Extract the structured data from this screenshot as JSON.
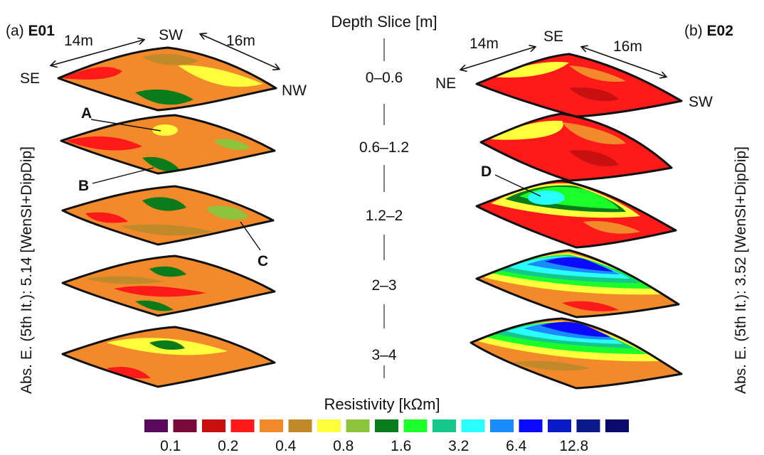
{
  "panel_a": {
    "label_prefix": "(a)",
    "label_code": "E01",
    "side_label": "Abs. E. (5th It.): 5.14 [WenSI+DipDip]",
    "compass": {
      "top": "SW",
      "left": "SE",
      "right": "NW"
    },
    "dims": {
      "left": "14m",
      "right": "16m"
    },
    "callouts": [
      "A",
      "B",
      "C"
    ]
  },
  "panel_b": {
    "label_prefix": "(b)",
    "label_code": "E02",
    "side_label": "Abs. E. (5th It.): 3.52 [WenSI+DipDip]",
    "compass": {
      "top": "SE",
      "left": "NE",
      "right": "SW"
    },
    "dims": {
      "left": "14m",
      "right": "16m"
    },
    "callouts": [
      "D"
    ]
  },
  "depth_title": "Depth Slice [m]",
  "depth_slices": [
    "0–0.6",
    "0.6–1.2",
    "1.2–2",
    "2–3",
    "3–4"
  ],
  "legend": {
    "title": "Resistivity [kΩm]",
    "colors": [
      "#5a0a5a",
      "#7a0a3a",
      "#c81010",
      "#ff1a1a",
      "#f28a2c",
      "#c08a2a",
      "#ffff3c",
      "#8cc43c",
      "#0a7a1a",
      "#1aff2a",
      "#14c88c",
      "#2affff",
      "#1a8aff",
      "#0a0aff",
      "#0a1ac8",
      "#0a1a8a",
      "#0a0a6a"
    ],
    "ticks": [
      "0.1",
      "0.2",
      "0.4",
      "0.8",
      "1.6",
      "3.2",
      "6.4",
      "12.8"
    ]
  }
}
